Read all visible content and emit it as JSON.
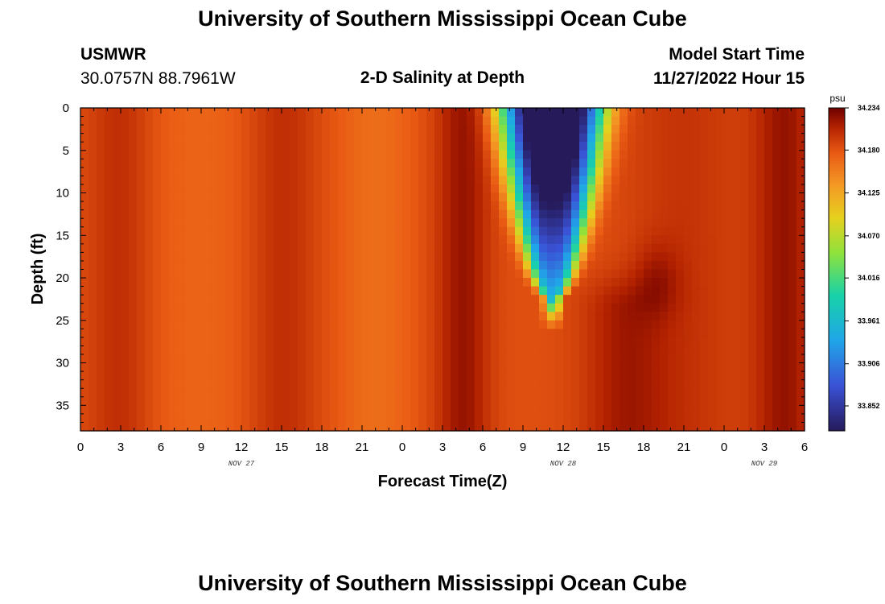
{
  "page": {
    "title": "University of Southern Mississippi Ocean Cube",
    "footer_title": "University of Southern Mississippi Ocean Cube",
    "station": "USMWR",
    "coords": "30.0757N  88.7961W",
    "plot_title": "2-D Salinity at Depth",
    "model_label": "Model Start Time",
    "model_time": "11/27/2022 Hour 15"
  },
  "colors": {
    "dark_red": "#6e0000",
    "red": "#b32200",
    "orange": "#e95a14",
    "light_orange": "#f49a24",
    "yellow": "#e6d01e",
    "green": "#8ee23c",
    "teal": "#18d2a8",
    "cyan": "#20a6e8",
    "blue": "#3a52d6",
    "navy": "#261a5a"
  },
  "chart_data": {
    "type": "heatmap",
    "title": "2-D Salinity at Depth",
    "xlabel": "Forecast Time(Z)",
    "ylabel": "Depth (ft)",
    "x_ticks": [
      "0",
      "3",
      "6",
      "9",
      "12",
      "15",
      "18",
      "21",
      "0",
      "3",
      "6",
      "9",
      "12",
      "15",
      "18",
      "21",
      "0",
      "3",
      "6"
    ],
    "x_range_hours": [
      0,
      54
    ],
    "date_labels": [
      {
        "text": "NOV 27",
        "hour": 12
      },
      {
        "text": "NOV 28",
        "hour": 36
      },
      {
        "text": "NOV 29",
        "hour": 51
      }
    ],
    "y_ticks": [
      0,
      5,
      10,
      15,
      20,
      25,
      30,
      35
    ],
    "ylim": [
      0,
      38
    ],
    "colorbar": {
      "unit": "psu",
      "labels": [
        "34.234",
        "34.180",
        "34.125",
        "34.070",
        "34.016",
        "33.961",
        "33.906",
        "33.852"
      ],
      "range": [
        33.82,
        34.234
      ]
    },
    "field_description_values": {
      "background_psu": 34.16,
      "low_salinity_core_psu": 33.84,
      "low_core_center_hour": 35.2,
      "low_core_bottom_depth_ft": 22
    }
  }
}
